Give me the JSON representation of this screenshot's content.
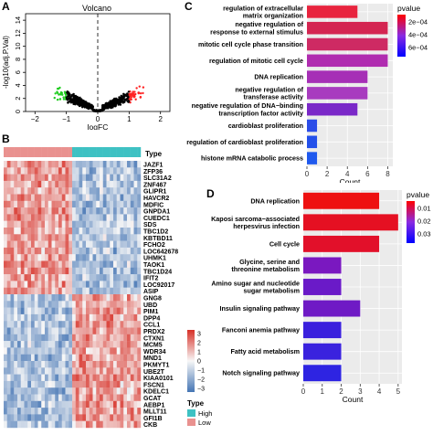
{
  "figure": {
    "panel_a": {
      "letter": "A",
      "chart_data": {
        "type": "scatter",
        "title": "Volcano",
        "xlabel": "logFC",
        "ylabel": "-log10(adj.P.Val)",
        "xlim": [
          -2.3,
          2.3
        ],
        "ylim": [
          0,
          15
        ],
        "x_ticks": [
          -2,
          -1,
          0,
          1,
          2
        ],
        "y_ticks": [
          0,
          2,
          4,
          6,
          8,
          10,
          12,
          14
        ],
        "vline_at": 0,
        "colors": {
          "up": "#ff2222",
          "down": "#22cc22",
          "ns": "#000000"
        }
      }
    },
    "panel_b": {
      "letter": "B",
      "type_label": "Type",
      "genes": [
        "JAZF1",
        "ZFP36",
        "SLC31A2",
        "ZNF467",
        "GLIPR1",
        "HAVCR2",
        "MDFIC",
        "GNPDA1",
        "CUEDC1",
        "SDS",
        "TBC1D2",
        "KBTBD11",
        "FCHO2",
        "LOC642678",
        "UHMK1",
        "TAOK1",
        "TBC1D24",
        "IFIT2",
        "LOC92017",
        "ASIP",
        "GNG8",
        "UBD",
        "PIM1",
        "DPP4",
        "CCL1",
        "PRDX2",
        "CTXN1",
        "MCM5",
        "WDR34",
        "MND1",
        "PKMYT1",
        "UBE2T",
        "KIAA0101",
        "FSCN1",
        "KDELC1",
        "GCAT",
        "AEBP1",
        "MLLT11",
        "GFI1B",
        "CKB"
      ],
      "colorbar": {
        "ticks": [
          "3",
          "2",
          "1",
          "0",
          "-1",
          "-2",
          "-3"
        ],
        "colors": {
          "high": "#d73027",
          "mid": "#f7f7f7",
          "low": "#4575b4"
        }
      },
      "legend": {
        "title": "Type",
        "items": [
          {
            "label": "High",
            "color": "#3ec1c3"
          },
          {
            "label": "Low",
            "color": "#e9918f"
          }
        ]
      }
    },
    "panel_c": {
      "letter": "C",
      "chart_data": {
        "type": "bar",
        "orientation": "horizontal",
        "xlabel": "Count",
        "xlim": [
          0,
          8.5
        ],
        "x_ticks": [
          0,
          2,
          4,
          6,
          8
        ],
        "categories": [
          "regulation of extracellular matrix organization",
          "negative regulation of response to external stimulus",
          "mitotic cell cycle phase transition",
          "regulation of mitotic cell cycle",
          "DNA replication",
          "negative regulation of transferase activity",
          "negative regulation of DNA−binding transcription factor activity",
          "cardioblast proliferation",
          "regulation of cardioblast proliferation",
          "histone mRNA catabolic process"
        ],
        "category_lines": [
          [
            "regulation of extracellular",
            "matrix organization"
          ],
          [
            "negative regulation of",
            "response to external stimulus"
          ],
          [
            "mitotic cell cycle phase transition"
          ],
          [
            "regulation of mitotic cell cycle"
          ],
          [
            "DNA replication"
          ],
          [
            "negative regulation of",
            "transferase activity"
          ],
          [
            "negative regulation of DNA−binding",
            "transcription factor activity"
          ],
          [
            "cardioblast proliferation"
          ],
          [
            "regulation of cardioblast proliferation"
          ],
          [
            "histone mRNA catabolic process"
          ]
        ],
        "values": [
          5,
          8,
          8,
          8,
          6,
          6,
          5,
          1,
          1,
          1
        ],
        "colors": [
          "#e8243e",
          "#d42551",
          "#ce2a63",
          "#b02cb0",
          "#a62fb6",
          "#a83bbf",
          "#7a28c8",
          "#2b4de8",
          "#2350ea",
          "#1f59ee"
        ],
        "legend": {
          "title": "pvalue",
          "ticks": [
            "2e−04",
            "4e−04",
            "6e−04"
          ],
          "placement": "right",
          "gradient": [
            "#ff0000",
            "#8a2be2",
            "#0000ff"
          ]
        }
      }
    },
    "panel_d": {
      "letter": "D",
      "chart_data": {
        "type": "bar",
        "orientation": "horizontal",
        "xlabel": "Count",
        "xlim": [
          0,
          5.2
        ],
        "x_ticks": [
          0,
          1,
          2,
          3,
          4,
          5
        ],
        "categories": [
          "DNA replication",
          "Kaposi sarcoma−associated herpesvirus infection",
          "Cell cycle",
          "Glycine, serine and threonine metabolism",
          "Amino sugar and nucleotide sugar metabolism",
          "Insulin signaling pathway",
          "Fanconi anemia pathway",
          "Fatty acid metabolism",
          "Notch signaling pathway"
        ],
        "category_lines": [
          [
            "DNA replication"
          ],
          [
            "Kaposi sarcoma−associated",
            "herpesvirus infection"
          ],
          [
            "Cell cycle"
          ],
          [
            "Glycine, serine and",
            "threonine metabolism"
          ],
          [
            "Amino sugar and nucleotide",
            "sugar metabolism"
          ],
          [
            "Insulin signaling pathway"
          ],
          [
            "Fanconi anemia pathway"
          ],
          [
            "Fatty acid metabolism"
          ],
          [
            "Notch signaling pathway"
          ]
        ],
        "values": [
          4,
          5,
          4,
          2,
          2,
          3,
          2,
          2,
          2
        ],
        "colors": [
          "#ee1111",
          "#e51022",
          "#e2102a",
          "#7a18c0",
          "#6a1ac8",
          "#6f1ac5",
          "#3a20dd",
          "#3a22de",
          "#2e24e2"
        ],
        "legend": {
          "title": "pvalue",
          "ticks": [
            "0.01",
            "0.02",
            "0.03"
          ],
          "placement": "right",
          "gradient": [
            "#ff0000",
            "#8a2be2",
            "#0000ff"
          ]
        }
      }
    }
  }
}
